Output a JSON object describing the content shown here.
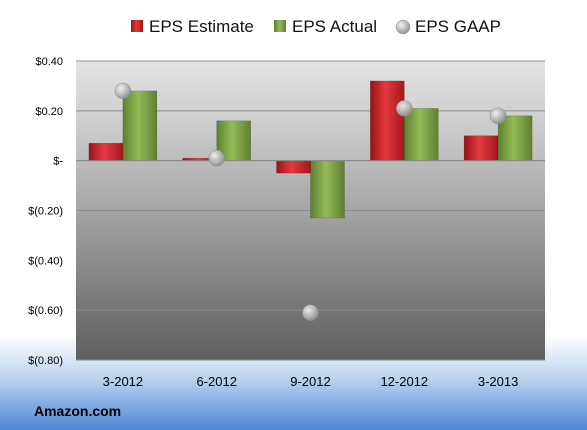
{
  "chart_data": {
    "type": "bar",
    "categories": [
      "3-2012",
      "6-2012",
      "9-2012",
      "12-2012",
      "3-2013"
    ],
    "series": [
      {
        "name": "EPS Estimate",
        "kind": "bar",
        "color": "#d8232a",
        "values": [
          0.07,
          0.01,
          -0.05,
          0.32,
          0.1
        ]
      },
      {
        "name": "EPS Actual",
        "kind": "bar",
        "color": "#7faa45",
        "values": [
          0.28,
          0.16,
          -0.23,
          0.21,
          0.18
        ]
      },
      {
        "name": "EPS GAAP",
        "kind": "marker",
        "color": "#b9b9b9",
        "values": [
          0.28,
          0.01,
          -0.61,
          0.21,
          0.18
        ]
      }
    ],
    "ylim": [
      -0.8,
      0.4
    ],
    "ytick_values": [
      0.4,
      0.2,
      0,
      -0.2,
      -0.4,
      -0.6,
      -0.8
    ],
    "ytick_labels": [
      "$0.40",
      "$0.20",
      "$-",
      "$(0.20)",
      "$(0.40)",
      "$(0.60)",
      "$(0.80)"
    ],
    "grid": true,
    "legend_position": "top",
    "source": "Amazon.com"
  }
}
